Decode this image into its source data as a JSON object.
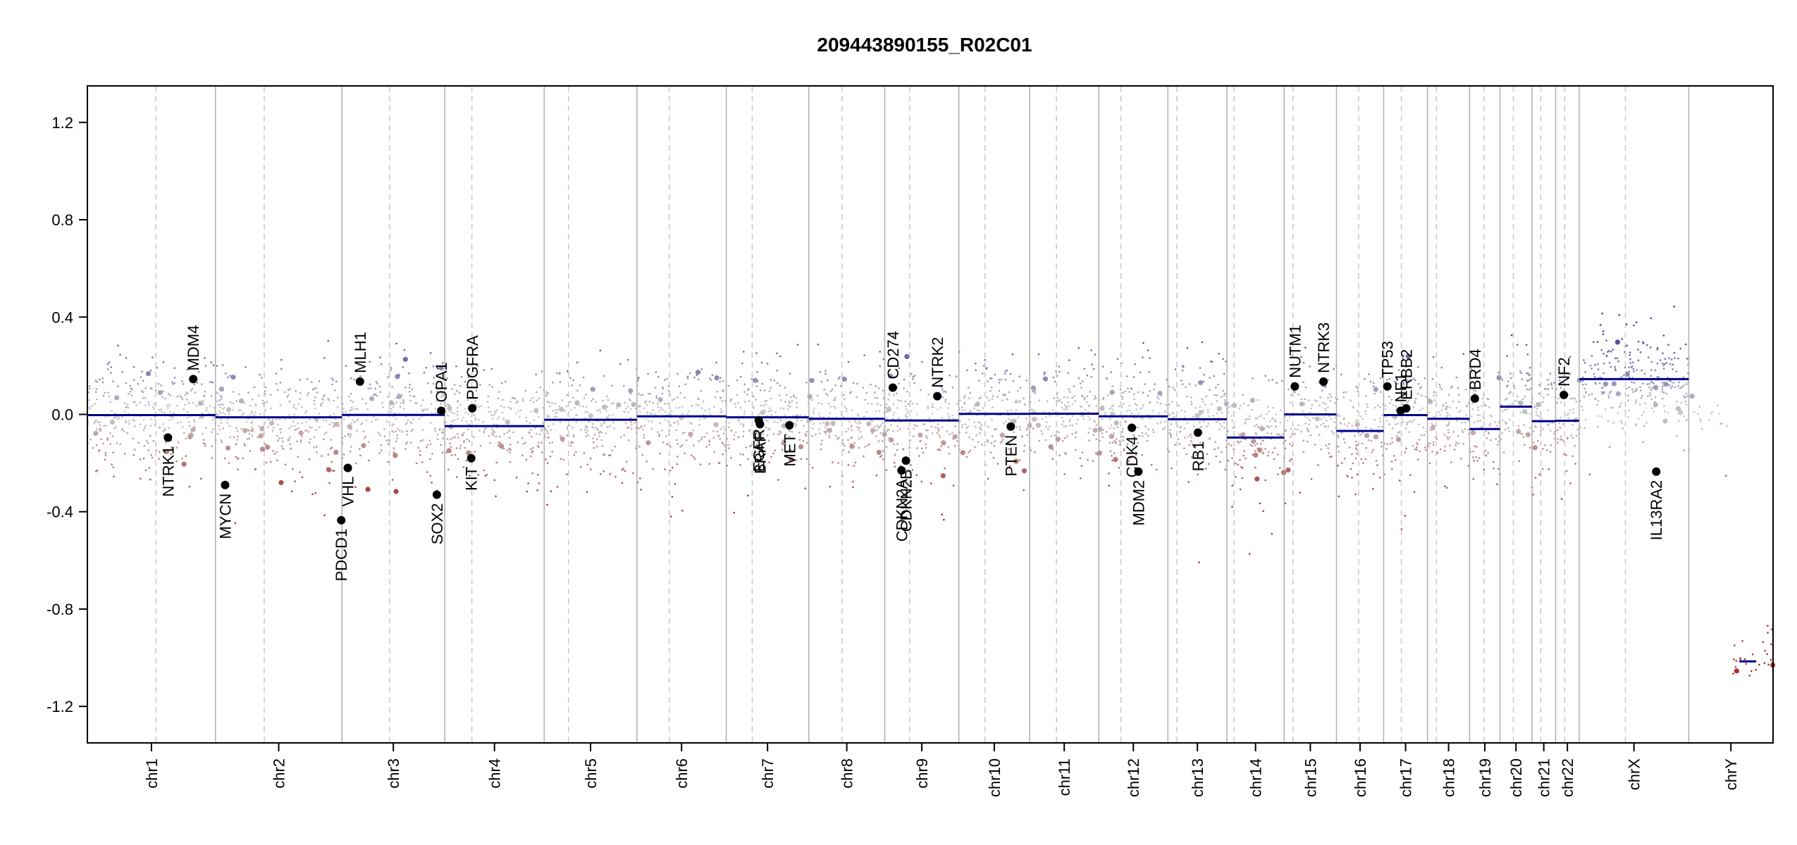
{
  "chart_data": {
    "type": "scatter",
    "title": "209443890155_R02C01",
    "xlabel": "",
    "ylabel": "",
    "ylim": [
      -1.35,
      1.35
    ],
    "y_ticks": [
      "1.2",
      "0.8",
      "0.4",
      "0.0",
      "-0.4",
      "-0.8",
      "-1.2"
    ],
    "y_tick_values": [
      1.2,
      0.8,
      0.4,
      0.0,
      -0.4,
      -0.8,
      -1.2
    ],
    "grid": false,
    "colors": {
      "gain": "#3b3d9e",
      "loss": "#a83232",
      "neutral": "#c8c8c8",
      "segment": "#00008b",
      "boundary": "#b0b0b0"
    },
    "chromosomes": [
      {
        "name": "chr1",
        "span": [
          0.0,
          0.076
        ],
        "centromere": 0.0406,
        "segments": [
          {
            "x0": 0.0,
            "x1": 0.076,
            "y": -0.003
          }
        ]
      },
      {
        "name": "chr2",
        "span": [
          0.076,
          0.151
        ],
        "centromere": 0.1049,
        "segments": [
          {
            "x0": 0.076,
            "x1": 0.151,
            "y": -0.012
          }
        ]
      },
      {
        "name": "chr3",
        "span": [
          0.151,
          0.212
        ],
        "centromere": 0.1792,
        "segments": [
          {
            "x0": 0.151,
            "x1": 0.212,
            "y": -0.002
          }
        ]
      },
      {
        "name": "chr4",
        "span": [
          0.212,
          0.271
        ],
        "centromere": 0.2281,
        "segments": [
          {
            "x0": 0.212,
            "x1": 0.271,
            "y": -0.048
          }
        ]
      },
      {
        "name": "chr5",
        "span": [
          0.271,
          0.326
        ],
        "centromere": 0.2854,
        "segments": [
          {
            "x0": 0.271,
            "x1": 0.326,
            "y": -0.022
          }
        ]
      },
      {
        "name": "chr6",
        "span": [
          0.326,
          0.379
        ],
        "centromere": 0.3452,
        "segments": [
          {
            "x0": 0.326,
            "x1": 0.379,
            "y": -0.008
          }
        ]
      },
      {
        "name": "chr7",
        "span": [
          0.379,
          0.428
        ],
        "centromere": 0.3944,
        "segments": [
          {
            "x0": 0.379,
            "x1": 0.428,
            "y": -0.012
          }
        ]
      },
      {
        "name": "chr8",
        "span": [
          0.428,
          0.473
        ],
        "centromere": 0.4477,
        "segments": [
          {
            "x0": 0.428,
            "x1": 0.473,
            "y": -0.018
          }
        ]
      },
      {
        "name": "chr9",
        "span": [
          0.473,
          0.517
        ],
        "centromere": 0.4878,
        "segments": [
          {
            "x0": 0.473,
            "x1": 0.517,
            "y": -0.025
          }
        ]
      },
      {
        "name": "chr10",
        "span": [
          0.517,
          0.559
        ],
        "centromere": 0.5325,
        "segments": [
          {
            "x0": 0.517,
            "x1": 0.559,
            "y": 0.002
          }
        ]
      },
      {
        "name": "chr11",
        "span": [
          0.559,
          0.6
        ],
        "centromere": 0.5749,
        "segments": [
          {
            "x0": 0.559,
            "x1": 0.6,
            "y": 0.003
          }
        ]
      },
      {
        "name": "chr12",
        "span": [
          0.6,
          0.641
        ],
        "centromere": 0.6131,
        "segments": [
          {
            "x0": 0.6,
            "x1": 0.641,
            "y": -0.008
          }
        ]
      },
      {
        "name": "chr13",
        "span": [
          0.641,
          0.676
        ],
        "centromere": 0.6463,
        "segments": [
          {
            "x0": 0.641,
            "x1": 0.676,
            "y": -0.02
          }
        ]
      },
      {
        "name": "chr14",
        "span": [
          0.676,
          0.71
        ],
        "centromere": 0.6802,
        "segments": [
          {
            "x0": 0.676,
            "x1": 0.71,
            "y": -0.095
          }
        ]
      },
      {
        "name": "chr15",
        "span": [
          0.71,
          0.741
        ],
        "centromere": 0.7152,
        "segments": [
          {
            "x0": 0.71,
            "x1": 0.741,
            "y": 0.0
          }
        ]
      },
      {
        "name": "chr16",
        "span": [
          0.741,
          0.769
        ],
        "centromere": 0.7542,
        "segments": [
          {
            "x0": 0.741,
            "x1": 0.769,
            "y": -0.068
          }
        ]
      },
      {
        "name": "chr17",
        "span": [
          0.769,
          0.795
        ],
        "centromere": 0.7795,
        "segments": [
          {
            "x0": 0.769,
            "x1": 0.795,
            "y": -0.003
          }
        ]
      },
      {
        "name": "chr18",
        "span": [
          0.795,
          0.82
        ],
        "centromere": 0.8003,
        "segments": [
          {
            "x0": 0.795,
            "x1": 0.82,
            "y": -0.018
          }
        ]
      },
      {
        "name": "chr19",
        "span": [
          0.82,
          0.838
        ],
        "centromere": 0.8285,
        "segments": [
          {
            "x0": 0.82,
            "x1": 0.838,
            "y": -0.06
          }
        ]
      },
      {
        "name": "chr20",
        "span": [
          0.838,
          0.857
        ],
        "centromere": 0.8459,
        "segments": [
          {
            "x0": 0.838,
            "x1": 0.857,
            "y": 0.032
          }
        ]
      },
      {
        "name": "chr21",
        "span": [
          0.857,
          0.871
        ],
        "centromere": 0.8622,
        "segments": [
          {
            "x0": 0.857,
            "x1": 0.871,
            "y": -0.028
          }
        ]
      },
      {
        "name": "chr22",
        "span": [
          0.871,
          0.885
        ],
        "centromere": 0.8764,
        "segments": [
          {
            "x0": 0.871,
            "x1": 0.885,
            "y": -0.026
          }
        ]
      },
      {
        "name": "chrX",
        "span": [
          0.885,
          0.95
        ],
        "centromere": 0.9124,
        "segments": [
          {
            "x0": 0.885,
            "x1": 0.95,
            "y": 0.145
          }
        ]
      },
      {
        "name": "chrY",
        "span": [
          0.95,
          1.0
        ],
        "centromere": null,
        "segments": [
          {
            "x0": 0.98,
            "x1": 0.99,
            "y": -1.015
          }
        ]
      }
    ],
    "genes": [
      {
        "name": "NTRK1",
        "x": 0.0478,
        "y": -0.095,
        "label_side": "below"
      },
      {
        "name": "MDM4",
        "x": 0.0628,
        "y": 0.145,
        "label_side": "above"
      },
      {
        "name": "MYCN",
        "x": 0.0817,
        "y": -0.29,
        "label_side": "below"
      },
      {
        "name": "MLH1",
        "x": 0.1617,
        "y": 0.135,
        "label_side": "above"
      },
      {
        "name": "VHL",
        "x": 0.1545,
        "y": -0.22,
        "label_side": "below"
      },
      {
        "name": "PDCD1",
        "x": 0.1506,
        "y": -0.435,
        "label_side": "below"
      },
      {
        "name": "SOX2",
        "x": 0.2073,
        "y": -0.33,
        "label_side": "below"
      },
      {
        "name": "OPA1",
        "x": 0.2099,
        "y": 0.015,
        "label_side": "above"
      },
      {
        "name": "PDGFRA",
        "x": 0.2283,
        "y": 0.025,
        "label_side": "above"
      },
      {
        "name": "KIT",
        "x": 0.2277,
        "y": -0.18,
        "label_side": "below"
      },
      {
        "name": "EGFR",
        "x": 0.3983,
        "y": -0.025,
        "label_side": "below"
      },
      {
        "name": "BRAF",
        "x": 0.399,
        "y": -0.04,
        "label_side": "below"
      },
      {
        "name": "MET",
        "x": 0.4165,
        "y": -0.045,
        "label_side": "below"
      },
      {
        "name": "CD274",
        "x": 0.4778,
        "y": 0.11,
        "label_side": "above"
      },
      {
        "name": "CDKN2A",
        "x": 0.483,
        "y": -0.23,
        "label_side": "below"
      },
      {
        "name": "CDKN2B",
        "x": 0.4856,
        "y": -0.19,
        "label_side": "below"
      },
      {
        "name": "NTRK2",
        "x": 0.5042,
        "y": 0.075,
        "label_side": "above"
      },
      {
        "name": "PTEN",
        "x": 0.5478,
        "y": -0.05,
        "label_side": "below"
      },
      {
        "name": "CDK4",
        "x": 0.6196,
        "y": -0.055,
        "label_side": "below"
      },
      {
        "name": "MDM2",
        "x": 0.6235,
        "y": -0.235,
        "label_side": "below"
      },
      {
        "name": "RB1",
        "x": 0.6588,
        "y": -0.075,
        "label_side": "below"
      },
      {
        "name": "NUTM1",
        "x": 0.7163,
        "y": 0.115,
        "label_side": "above"
      },
      {
        "name": "NTRK3",
        "x": 0.7333,
        "y": 0.135,
        "label_side": "above"
      },
      {
        "name": "TP53",
        "x": 0.7712,
        "y": 0.115,
        "label_side": "above"
      },
      {
        "name": "NF1",
        "x": 0.7791,
        "y": 0.015,
        "label_side": "above"
      },
      {
        "name": "ERBB2",
        "x": 0.7824,
        "y": 0.025,
        "label_side": "above"
      },
      {
        "name": "BRD4",
        "x": 0.8231,
        "y": 0.065,
        "label_side": "above"
      },
      {
        "name": "NF2",
        "x": 0.8759,
        "y": 0.08,
        "label_side": "above"
      },
      {
        "name": "IL13RA2",
        "x": 0.9307,
        "y": -0.235,
        "label_side": "below"
      }
    ]
  }
}
